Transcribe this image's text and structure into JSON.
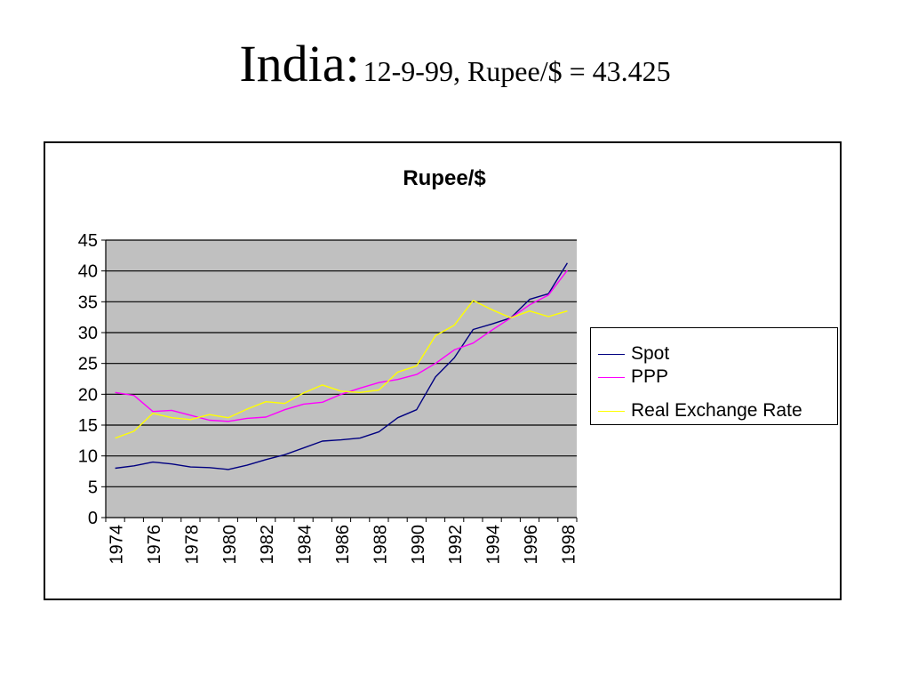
{
  "slide": {
    "title_main": "India:",
    "title_rest": "12-9-99, Rupee/$ = 43.425"
  },
  "colors": {
    "plot_bg": "#c0c0c0",
    "gridline": "#000000",
    "spot": "#000080",
    "ppp": "#ff00ff",
    "real": "#ffff00"
  },
  "chart_data": {
    "type": "line",
    "title": "Rupee/$",
    "xlabel": "",
    "ylabel": "",
    "ylim": [
      0,
      45
    ],
    "yticks": [
      0,
      5,
      10,
      15,
      20,
      25,
      30,
      35,
      40,
      45
    ],
    "x": [
      1974,
      1975,
      1976,
      1977,
      1978,
      1979,
      1980,
      1981,
      1982,
      1983,
      1984,
      1985,
      1986,
      1987,
      1988,
      1989,
      1990,
      1991,
      1992,
      1993,
      1994,
      1995,
      1996,
      1997,
      1998
    ],
    "xtick_labels": [
      "1974",
      "1976",
      "1978",
      "1980",
      "1982",
      "1984",
      "1986",
      "1988",
      "1990",
      "1992",
      "1994",
      "1996",
      "1998"
    ],
    "grid": "horizontal",
    "legend_position": "right",
    "series": [
      {
        "name": "Spot",
        "color": "#000080",
        "values": [
          8.0,
          8.4,
          9.0,
          8.7,
          8.2,
          8.1,
          7.8,
          8.5,
          9.4,
          10.2,
          11.3,
          12.4,
          12.6,
          12.9,
          13.9,
          16.2,
          17.5,
          22.8,
          25.9,
          30.5,
          31.4,
          32.4,
          35.4,
          36.3,
          41.3
        ]
      },
      {
        "name": "PPP",
        "color": "#ff00ff",
        "values": [
          20.3,
          19.8,
          17.2,
          17.4,
          16.6,
          15.8,
          15.6,
          16.1,
          16.3,
          17.5,
          18.4,
          18.7,
          20.0,
          21.0,
          21.9,
          22.4,
          23.2,
          25.0,
          27.2,
          28.3,
          30.4,
          32.4,
          34.5,
          36.1,
          40.1
        ]
      },
      {
        "name": "Real Exchange Rate",
        "color": "#ffff00",
        "values": [
          12.9,
          14.0,
          16.9,
          16.2,
          15.9,
          16.7,
          16.2,
          17.6,
          18.8,
          18.5,
          20.2,
          21.5,
          20.5,
          20.3,
          20.7,
          23.6,
          24.6,
          29.5,
          31.2,
          35.2,
          33.7,
          32.4,
          33.5,
          32.6,
          33.5
        ]
      }
    ]
  }
}
